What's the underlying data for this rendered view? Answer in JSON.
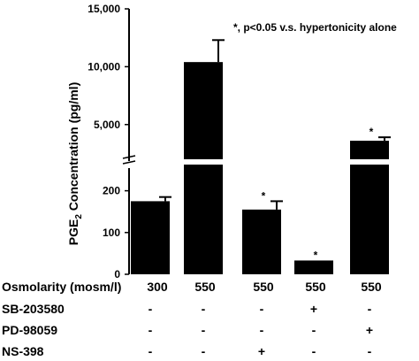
{
  "chart_data": {
    "type": "bar",
    "ylabel_parts": [
      "PGE",
      "2",
      " Concentration (pg/ml)"
    ],
    "annotation": "*, p<0.05 v.s. hypertonicity alone",
    "axis_break": true,
    "lower_axis": {
      "ylim": [
        0,
        250
      ],
      "ticks": [
        0,
        100,
        200
      ],
      "tick_labels": [
        "0",
        "100",
        "200"
      ]
    },
    "upper_axis": {
      "ylim": [
        2000,
        15000
      ],
      "ticks": [
        5000,
        10000,
        15000
      ],
      "tick_labels": [
        "5,000",
        "10,000",
        "15,000"
      ]
    },
    "categories": [
      "300",
      "550",
      "550",
      "550",
      "550"
    ],
    "values": [
      175,
      10400,
      155,
      33,
      3600
    ],
    "errors": [
      10,
      1900,
      20,
      0,
      300
    ],
    "significant": [
      false,
      false,
      true,
      true,
      true
    ],
    "bar_color": "#000000",
    "grid": false
  },
  "table": {
    "rows": [
      {
        "label": "Osmolarity (mosm/l)",
        "cells": [
          "300",
          "550",
          "550",
          "550",
          "550"
        ]
      },
      {
        "label": "SB-203580",
        "cells": [
          "-",
          "-",
          "-",
          "+",
          "-"
        ]
      },
      {
        "label": "PD-98059",
        "cells": [
          "-",
          "-",
          "-",
          "-",
          "+"
        ]
      },
      {
        "label": "NS-398",
        "cells": [
          "-",
          "-",
          "+",
          "-",
          "-"
        ]
      }
    ]
  },
  "star_symbol": "*"
}
